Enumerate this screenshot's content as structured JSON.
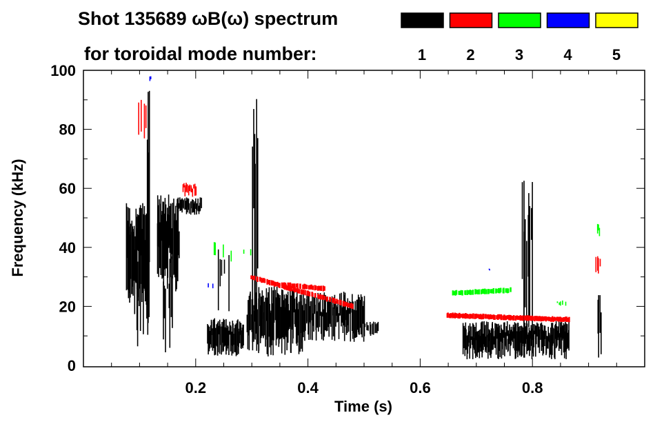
{
  "chart_data": {
    "type": "heatmap",
    "title": "Shot 135689 ωB(ω) spectrum",
    "subtitle": "for toroidal mode number:",
    "xlabel": "Time (s)",
    "ylabel": "Frequency (kHz)",
    "xlim": [
      0,
      1.0
    ],
    "ylim": [
      0,
      100
    ],
    "xticks": [
      0.2,
      0.4,
      0.6,
      0.8
    ],
    "xtick_labels": [
      "0.2",
      "0.4",
      "0.6",
      "0.8"
    ],
    "yticks": [
      0,
      20,
      40,
      60,
      80,
      100
    ],
    "ytick_labels": [
      "0",
      "20",
      "40",
      "60",
      "80",
      "100"
    ],
    "legend": [
      {
        "label": "1",
        "color": "#000000"
      },
      {
        "label": "2",
        "color": "#ff0000"
      },
      {
        "label": "3",
        "color": "#00ff00"
      },
      {
        "label": "4",
        "color": "#0000ff"
      },
      {
        "label": "5",
        "color": "#ffff00"
      }
    ],
    "regions": [
      {
        "mode": 1,
        "t": [
          0.075,
          0.115
        ],
        "f": [
          20,
          55
        ],
        "n": 40
      },
      {
        "mode": 1,
        "t": [
          0.09,
          0.115
        ],
        "f": [
          5,
          45
        ],
        "n": 10
      },
      {
        "mode": 1,
        "t": [
          0.112,
          0.118
        ],
        "f": [
          12,
          95
        ],
        "n": 4
      },
      {
        "mode": 1,
        "t": [
          0.13,
          0.17
        ],
        "f": [
          25,
          58
        ],
        "n": 36
      },
      {
        "mode": 1,
        "t": [
          0.14,
          0.16
        ],
        "f": [
          2,
          40
        ],
        "n": 8
      },
      {
        "mode": 1,
        "t": [
          0.165,
          0.21
        ],
        "f": [
          51,
          57
        ],
        "n": 30
      },
      {
        "mode": 1,
        "t": [
          0.22,
          0.285
        ],
        "f": [
          3,
          16
        ],
        "n": 55
      },
      {
        "mode": 1,
        "t": [
          0.235,
          0.26
        ],
        "f": [
          15,
          40
        ],
        "n": 5
      },
      {
        "mode": 1,
        "t": [
          0.3,
          0.31
        ],
        "f": [
          2,
          100
        ],
        "n": 6
      },
      {
        "mode": 1,
        "t": [
          0.29,
          0.39
        ],
        "f": [
          3,
          27
        ],
        "n": 80
      },
      {
        "mode": 1,
        "t": [
          0.39,
          0.5
        ],
        "f": [
          8,
          25
        ],
        "n": 80
      },
      {
        "mode": 1,
        "t": [
          0.5,
          0.525
        ],
        "f": [
          10,
          15
        ],
        "n": 12
      },
      {
        "mode": 1,
        "t": [
          0.675,
          0.865
        ],
        "f": [
          2,
          15
        ],
        "n": 170
      },
      {
        "mode": 1,
        "t": [
          0.78,
          0.8
        ],
        "f": [
          5,
          63
        ],
        "n": 10
      },
      {
        "mode": 1,
        "t": [
          0.915,
          0.922
        ],
        "f": [
          2,
          25
        ],
        "n": 4
      },
      {
        "mode": 2,
        "t": [
          0.175,
          0.2
        ],
        "f": [
          57,
          62
        ],
        "n": 14
      },
      {
        "mode": 2,
        "t": [
          0.295,
          0.48
        ],
        "f": [
          30,
          20
        ],
        "n": 70,
        "line": true
      },
      {
        "mode": 2,
        "t": [
          0.35,
          0.43
        ],
        "f": [
          27.5,
          26
        ],
        "n": 30,
        "line": true
      },
      {
        "mode": 2,
        "t": [
          0.645,
          0.865
        ],
        "f": [
          17,
          15.5
        ],
        "n": 110,
        "line": true
      },
      {
        "mode": 2,
        "t": [
          0.912,
          0.92
        ],
        "f": [
          31,
          37
        ],
        "n": 4
      },
      {
        "mode": 2,
        "t": [
          0.095,
          0.115
        ],
        "f": [
          72,
          90
        ],
        "n": 4
      },
      {
        "mode": 3,
        "t": [
          0.655,
          0.76
        ],
        "f": [
          24.5,
          25.5
        ],
        "n": 40,
        "line": true
      },
      {
        "mode": 3,
        "t": [
          0.915,
          0.92
        ],
        "f": [
          43,
          48
        ],
        "n": 3
      },
      {
        "mode": 3,
        "t": [
          0.22,
          0.3
        ],
        "f": [
          35,
          42
        ],
        "n": 6
      },
      {
        "mode": 3,
        "t": [
          0.84,
          0.86
        ],
        "f": [
          20,
          22
        ],
        "n": 5
      },
      {
        "mode": 4,
        "t": [
          0.115,
          0.12
        ],
        "f": [
          96,
          98
        ],
        "n": 2
      },
      {
        "mode": 4,
        "t": [
          0.72,
          0.725
        ],
        "f": [
          32,
          33
        ],
        "n": 2
      },
      {
        "mode": 4,
        "t": [
          0.22,
          0.23
        ],
        "f": [
          26,
          28
        ],
        "n": 2
      }
    ]
  }
}
